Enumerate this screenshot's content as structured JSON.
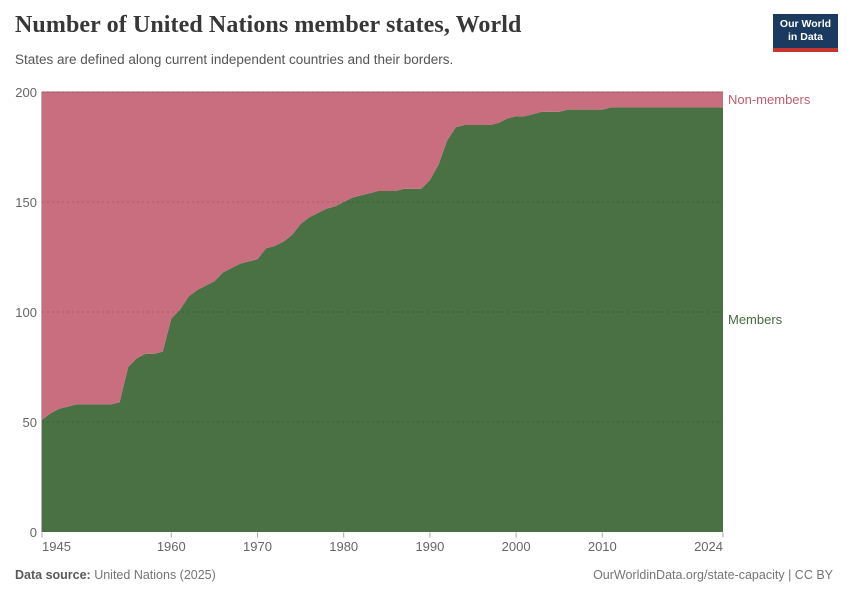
{
  "header": {
    "title": "Number of United Nations member states, World",
    "subtitle": "States are defined along current independent countries and their borders.",
    "logo": {
      "line1": "Our World",
      "line2": "in Data"
    }
  },
  "chart_data": {
    "type": "area",
    "stacked": true,
    "title": "Number of United Nations member states, World",
    "xlabel": "",
    "ylabel": "",
    "x_range": [
      1945,
      2024
    ],
    "ylim": [
      0,
      200
    ],
    "total": 200,
    "grid": true,
    "yticks": [
      0,
      50,
      100,
      150,
      200
    ],
    "xticks": [
      1945,
      1960,
      1970,
      1980,
      1990,
      2000,
      2010,
      2024
    ],
    "x": [
      1945,
      1946,
      1947,
      1948,
      1949,
      1950,
      1951,
      1952,
      1953,
      1954,
      1955,
      1956,
      1957,
      1958,
      1959,
      1960,
      1961,
      1962,
      1963,
      1964,
      1965,
      1966,
      1967,
      1968,
      1969,
      1970,
      1971,
      1972,
      1973,
      1974,
      1975,
      1976,
      1977,
      1978,
      1979,
      1980,
      1981,
      1982,
      1983,
      1984,
      1985,
      1986,
      1987,
      1988,
      1989,
      1990,
      1991,
      1992,
      1993,
      1994,
      1995,
      1996,
      1997,
      1998,
      1999,
      2000,
      2001,
      2002,
      2003,
      2004,
      2005,
      2006,
      2007,
      2008,
      2009,
      2010,
      2011,
      2012,
      2013,
      2014,
      2015,
      2016,
      2017,
      2018,
      2019,
      2020,
      2021,
      2022,
      2023,
      2024
    ],
    "series": [
      {
        "name": "Members",
        "color": "#4a7144",
        "label_color": "#476b40",
        "values": [
          51,
          54,
          56,
          57,
          58,
          58,
          58,
          58,
          58,
          59,
          75,
          79,
          81,
          81,
          82,
          97,
          101,
          107,
          110,
          112,
          114,
          118,
          120,
          122,
          123,
          124,
          129,
          130,
          132,
          135,
          140,
          143,
          145,
          147,
          148,
          150,
          152,
          153,
          154,
          155,
          155,
          155,
          156,
          156,
          156,
          160,
          167,
          178,
          184,
          185,
          185,
          185,
          185,
          186,
          188,
          189,
          189,
          190,
          191,
          191,
          191,
          192,
          192,
          192,
          192,
          192,
          193,
          193,
          193,
          193,
          193,
          193,
          193,
          193,
          193,
          193,
          193,
          193,
          193,
          193
        ]
      },
      {
        "name": "Non-members",
        "color": "#c86e7e",
        "label_color": "#c25c6f",
        "values": [
          149,
          146,
          144,
          143,
          142,
          142,
          142,
          142,
          142,
          141,
          125,
          121,
          119,
          119,
          118,
          103,
          99,
          93,
          90,
          88,
          86,
          82,
          80,
          78,
          77,
          76,
          71,
          70,
          68,
          65,
          60,
          57,
          55,
          53,
          52,
          50,
          48,
          47,
          46,
          45,
          45,
          45,
          44,
          44,
          44,
          40,
          33,
          22,
          16,
          15,
          15,
          15,
          15,
          14,
          12,
          11,
          11,
          10,
          9,
          9,
          9,
          8,
          8,
          8,
          8,
          8,
          7,
          7,
          7,
          7,
          7,
          7,
          7,
          7,
          7,
          7,
          7,
          7,
          7,
          7
        ]
      }
    ]
  },
  "footer": {
    "source_label": "Data source:",
    "source_value": " United Nations (2025)",
    "link": "OurWorldinData.org/state-capacity",
    "divider": " | ",
    "license": "CC BY"
  }
}
